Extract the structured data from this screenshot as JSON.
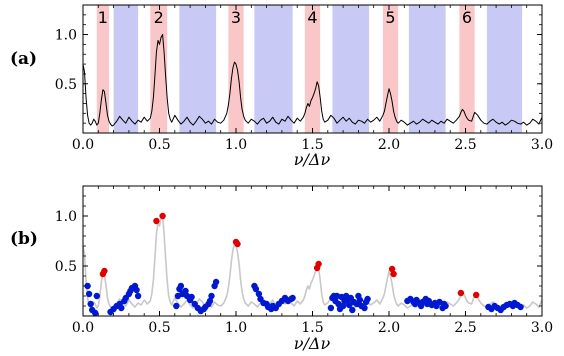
{
  "chart_data": [
    {
      "panel_label": "(a)",
      "type": "line",
      "xlim": [
        0.0,
        3.0
      ],
      "ylim": [
        0.0,
        1.3
      ],
      "xlabel": "ν/Δν",
      "xtick_labels": [
        "0.0",
        "0.5",
        "1.0",
        "1.5",
        "2.0",
        "2.5",
        "3.0"
      ],
      "xticks": [
        0.0,
        0.5,
        1.0,
        1.5,
        2.0,
        2.5,
        3.0
      ],
      "ytick_labels": [
        "0.5",
        "1.0"
      ],
      "yticks": [
        0.5,
        1.0
      ],
      "bands": {
        "red": [
          [
            0.09,
            0.17
          ],
          [
            0.44,
            0.55
          ],
          [
            0.95,
            1.05
          ],
          [
            1.45,
            1.55
          ],
          [
            1.96,
            2.06
          ],
          [
            2.46,
            2.56
          ]
        ],
        "blue": [
          [
            0.2,
            0.36
          ],
          [
            0.63,
            0.87
          ],
          [
            1.12,
            1.37
          ],
          [
            1.63,
            1.87
          ],
          [
            2.13,
            2.37
          ],
          [
            2.64,
            2.87
          ]
        ],
        "red_color": "#f9c7c7",
        "blue_color": "#c9c9f6"
      },
      "band_labels": [
        "1",
        "2",
        "3",
        "4",
        "5",
        "6"
      ],
      "series": [
        {
          "color": "#000000",
          "x": [
            0.0,
            0.01,
            0.02,
            0.03,
            0.04,
            0.05,
            0.06,
            0.07,
            0.08,
            0.09,
            0.1,
            0.11,
            0.12,
            0.13,
            0.14,
            0.15,
            0.16,
            0.17,
            0.18,
            0.19,
            0.2,
            0.22,
            0.24,
            0.26,
            0.28,
            0.3,
            0.32,
            0.34,
            0.36,
            0.38,
            0.4,
            0.42,
            0.44,
            0.45,
            0.46,
            0.47,
            0.48,
            0.49,
            0.5,
            0.51,
            0.52,
            0.53,
            0.54,
            0.55,
            0.56,
            0.57,
            0.58,
            0.6,
            0.62,
            0.64,
            0.66,
            0.68,
            0.7,
            0.72,
            0.74,
            0.76,
            0.78,
            0.8,
            0.82,
            0.84,
            0.86,
            0.88,
            0.9,
            0.92,
            0.94,
            0.95,
            0.96,
            0.97,
            0.98,
            0.99,
            1.0,
            1.01,
            1.02,
            1.03,
            1.04,
            1.05,
            1.06,
            1.08,
            1.1,
            1.12,
            1.14,
            1.16,
            1.18,
            1.2,
            1.22,
            1.24,
            1.26,
            1.28,
            1.3,
            1.32,
            1.34,
            1.36,
            1.38,
            1.4,
            1.42,
            1.44,
            1.45,
            1.46,
            1.47,
            1.48,
            1.49,
            1.5,
            1.51,
            1.52,
            1.53,
            1.54,
            1.55,
            1.56,
            1.57,
            1.58,
            1.6,
            1.62,
            1.64,
            1.66,
            1.68,
            1.7,
            1.72,
            1.74,
            1.76,
            1.78,
            1.8,
            1.82,
            1.84,
            1.86,
            1.88,
            1.9,
            1.92,
            1.94,
            1.96,
            1.97,
            1.98,
            1.99,
            2.0,
            2.01,
            2.02,
            2.03,
            2.04,
            2.05,
            2.06,
            2.08,
            2.1,
            2.12,
            2.14,
            2.16,
            2.18,
            2.2,
            2.22,
            2.24,
            2.26,
            2.28,
            2.3,
            2.32,
            2.34,
            2.36,
            2.38,
            2.4,
            2.42,
            2.44,
            2.46,
            2.47,
            2.48,
            2.49,
            2.5,
            2.51,
            2.52,
            2.54,
            2.56,
            2.58,
            2.6,
            2.62,
            2.64,
            2.66,
            2.68,
            2.7,
            2.72,
            2.74,
            2.76,
            2.78,
            2.8,
            2.82,
            2.84,
            2.86,
            2.88,
            2.9,
            2.92,
            2.94,
            2.96,
            2.98,
            3.0
          ],
          "y": [
            0.7,
            0.62,
            0.35,
            0.18,
            0.1,
            0.08,
            0.1,
            0.14,
            0.12,
            0.08,
            0.1,
            0.2,
            0.34,
            0.44,
            0.42,
            0.3,
            0.18,
            0.12,
            0.09,
            0.07,
            0.08,
            0.12,
            0.17,
            0.13,
            0.1,
            0.16,
            0.12,
            0.09,
            0.13,
            0.11,
            0.16,
            0.12,
            0.15,
            0.22,
            0.36,
            0.58,
            0.82,
            0.94,
            0.9,
            0.97,
            1.0,
            0.82,
            0.58,
            0.35,
            0.2,
            0.14,
            0.11,
            0.18,
            0.13,
            0.09,
            0.12,
            0.16,
            0.11,
            0.08,
            0.12,
            0.17,
            0.14,
            0.1,
            0.12,
            0.09,
            0.14,
            0.11,
            0.1,
            0.13,
            0.2,
            0.28,
            0.4,
            0.55,
            0.66,
            0.72,
            0.7,
            0.64,
            0.52,
            0.36,
            0.24,
            0.17,
            0.13,
            0.1,
            0.14,
            0.12,
            0.09,
            0.13,
            0.15,
            0.1,
            0.12,
            0.16,
            0.11,
            0.09,
            0.14,
            0.12,
            0.17,
            0.13,
            0.1,
            0.15,
            0.12,
            0.16,
            0.2,
            0.26,
            0.3,
            0.27,
            0.33,
            0.36,
            0.4,
            0.45,
            0.52,
            0.48,
            0.36,
            0.22,
            0.14,
            0.11,
            0.13,
            0.18,
            0.15,
            0.1,
            0.13,
            0.16,
            0.12,
            0.15,
            0.11,
            0.09,
            0.13,
            0.12,
            0.1,
            0.14,
            0.11,
            0.13,
            0.16,
            0.12,
            0.18,
            0.22,
            0.3,
            0.38,
            0.45,
            0.4,
            0.32,
            0.22,
            0.16,
            0.12,
            0.1,
            0.13,
            0.11,
            0.08,
            0.1,
            0.12,
            0.09,
            0.11,
            0.14,
            0.12,
            0.1,
            0.13,
            0.11,
            0.09,
            0.12,
            0.1,
            0.14,
            0.12,
            0.1,
            0.13,
            0.17,
            0.21,
            0.24,
            0.22,
            0.18,
            0.15,
            0.13,
            0.12,
            0.21,
            0.18,
            0.13,
            0.1,
            0.09,
            0.12,
            0.14,
            0.11,
            0.09,
            0.11,
            0.08,
            0.1,
            0.13,
            0.12,
            0.1,
            0.09,
            0.11,
            0.08,
            0.1,
            0.14,
            0.12,
            0.09,
            0.16
          ]
        }
      ]
    },
    {
      "panel_label": "(b)",
      "type": "scatter",
      "xlim": [
        0.0,
        3.0
      ],
      "ylim": [
        0.0,
        1.3
      ],
      "xlabel": "ν/Δν",
      "xtick_labels": [
        "0.0",
        "0.5",
        "1.0",
        "1.5",
        "2.0",
        "2.5",
        "3.0"
      ],
      "xticks": [
        0.0,
        0.5,
        1.0,
        1.5,
        2.0,
        2.5,
        3.0
      ],
      "ytick_labels": [
        "0.5",
        "1.0"
      ],
      "yticks": [
        0.5,
        1.0
      ],
      "background_line_color": "#c8c8c8",
      "series": [
        {
          "color": "#e00000",
          "points": [
            [
              0.13,
              0.42
            ],
            [
              0.14,
              0.45
            ],
            [
              0.48,
              0.95
            ],
            [
              0.52,
              1.0
            ],
            [
              1.0,
              0.74
            ],
            [
              1.01,
              0.72
            ],
            [
              1.53,
              0.48
            ],
            [
              1.54,
              0.52
            ],
            [
              2.02,
              0.47
            ],
            [
              2.03,
              0.42
            ],
            [
              2.47,
              0.23
            ],
            [
              2.57,
              0.21
            ]
          ]
        },
        {
          "color": "#0018d0",
          "points": [
            [
              0.03,
              0.3
            ],
            [
              0.04,
              0.22
            ],
            [
              0.05,
              0.12
            ],
            [
              0.06,
              0.06
            ],
            [
              0.08,
              0.03
            ],
            [
              0.09,
              0.2
            ],
            [
              0.18,
              0.04
            ],
            [
              0.2,
              0.07
            ],
            [
              0.22,
              0.1
            ],
            [
              0.24,
              0.12
            ],
            [
              0.25,
              0.08
            ],
            [
              0.27,
              0.15
            ],
            [
              0.28,
              0.18
            ],
            [
              0.3,
              0.22
            ],
            [
              0.31,
              0.25
            ],
            [
              0.32,
              0.28
            ],
            [
              0.34,
              0.3
            ],
            [
              0.35,
              0.26
            ],
            [
              0.36,
              0.2
            ],
            [
              0.61,
              0.1
            ],
            [
              0.62,
              0.2
            ],
            [
              0.63,
              0.27
            ],
            [
              0.64,
              0.3
            ],
            [
              0.65,
              0.22
            ],
            [
              0.67,
              0.25
            ],
            [
              0.68,
              0.2
            ],
            [
              0.7,
              0.16
            ],
            [
              0.71,
              0.19
            ],
            [
              0.73,
              0.12
            ],
            [
              0.75,
              0.08
            ],
            [
              0.77,
              0.05
            ],
            [
              0.79,
              0.07
            ],
            [
              0.8,
              0.09
            ],
            [
              0.82,
              0.12
            ],
            [
              0.83,
              0.15
            ],
            [
              0.84,
              0.2
            ],
            [
              0.86,
              0.3
            ],
            [
              0.87,
              0.34
            ],
            [
              1.12,
              0.3
            ],
            [
              1.13,
              0.27
            ],
            [
              1.15,
              0.22
            ],
            [
              1.16,
              0.17
            ],
            [
              1.18,
              0.13
            ],
            [
              1.2,
              0.12
            ],
            [
              1.21,
              0.09
            ],
            [
              1.23,
              0.07
            ],
            [
              1.24,
              0.1
            ],
            [
              1.26,
              0.08
            ],
            [
              1.28,
              0.12
            ],
            [
              1.3,
              0.15
            ],
            [
              1.32,
              0.18
            ],
            [
              1.34,
              0.15
            ],
            [
              1.36,
              0.17
            ],
            [
              1.37,
              0.18
            ],
            [
              1.62,
              0.08
            ],
            [
              1.63,
              0.18
            ],
            [
              1.64,
              0.2
            ],
            [
              1.65,
              0.15
            ],
            [
              1.66,
              0.2
            ],
            [
              1.67,
              0.12
            ],
            [
              1.68,
              0.07
            ],
            [
              1.69,
              0.19
            ],
            [
              1.7,
              0.1
            ],
            [
              1.71,
              0.15
            ],
            [
              1.72,
              0.2
            ],
            [
              1.73,
              0.16
            ],
            [
              1.74,
              0.11
            ],
            [
              1.75,
              0.18
            ],
            [
              1.76,
              0.06
            ],
            [
              1.77,
              0.14
            ],
            [
              1.79,
              0.12
            ],
            [
              1.8,
              0.2
            ],
            [
              1.81,
              0.16
            ],
            [
              1.82,
              0.1
            ],
            [
              1.84,
              0.08
            ],
            [
              1.85,
              0.14
            ],
            [
              1.86,
              0.17
            ],
            [
              2.12,
              0.15
            ],
            [
              2.14,
              0.17
            ],
            [
              2.16,
              0.14
            ],
            [
              2.17,
              0.12
            ],
            [
              2.18,
              0.16
            ],
            [
              2.2,
              0.13
            ],
            [
              2.21,
              0.1
            ],
            [
              2.22,
              0.14
            ],
            [
              2.24,
              0.17
            ],
            [
              2.25,
              0.12
            ],
            [
              2.26,
              0.15
            ],
            [
              2.28,
              0.11
            ],
            [
              2.3,
              0.13
            ],
            [
              2.31,
              0.1
            ],
            [
              2.33,
              0.14
            ],
            [
              2.35,
              0.08
            ],
            [
              2.36,
              0.12
            ],
            [
              2.37,
              0.1
            ],
            [
              2.65,
              0.09
            ],
            [
              2.67,
              0.07
            ],
            [
              2.69,
              0.1
            ],
            [
              2.71,
              0.08
            ],
            [
              2.73,
              0.06
            ],
            [
              2.75,
              0.09
            ],
            [
              2.77,
              0.11
            ],
            [
              2.79,
              0.12
            ],
            [
              2.81,
              0.1
            ],
            [
              2.82,
              0.13
            ],
            [
              2.84,
              0.11
            ],
            [
              2.86,
              0.09
            ]
          ]
        }
      ]
    }
  ]
}
